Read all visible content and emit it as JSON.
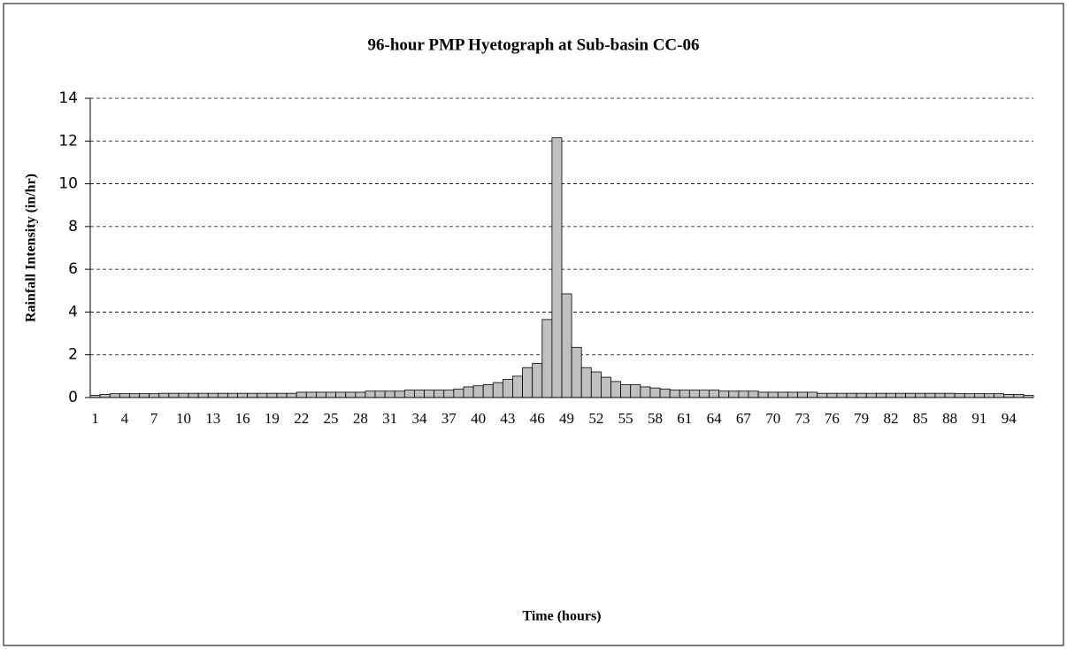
{
  "chart_data": {
    "type": "bar",
    "title": "96-hour PMP Hyetograph at Sub-basin CC-06",
    "xlabel": "Time (hours)",
    "ylabel": "Rainfall Intensity (in/hr)",
    "categories": [
      1,
      null,
      null,
      4,
      null,
      null,
      7,
      null,
      null,
      10,
      null,
      null,
      13,
      null,
      null,
      16,
      null,
      null,
      19,
      null,
      null,
      22,
      null,
      null,
      25,
      null,
      null,
      28,
      null,
      null,
      31,
      null,
      null,
      34,
      null,
      null,
      37,
      null,
      null,
      40,
      null,
      null,
      43,
      null,
      null,
      46,
      null,
      null,
      49,
      null,
      null,
      52,
      null,
      null,
      55,
      null,
      null,
      58,
      null,
      null,
      61,
      null,
      null,
      64,
      null,
      null,
      67,
      null,
      null,
      70,
      null,
      null,
      73,
      null,
      null,
      76,
      null,
      null,
      79,
      null,
      null,
      82,
      null,
      null,
      85,
      null,
      null,
      88,
      null,
      null,
      91,
      null,
      null,
      94,
      null,
      null
    ],
    "values": [
      0.1,
      0.15,
      0.18,
      0.18,
      0.18,
      0.18,
      0.18,
      0.2,
      0.2,
      0.2,
      0.2,
      0.2,
      0.2,
      0.2,
      0.2,
      0.2,
      0.2,
      0.2,
      0.2,
      0.2,
      0.2,
      0.25,
      0.25,
      0.25,
      0.25,
      0.25,
      0.25,
      0.25,
      0.3,
      0.3,
      0.3,
      0.3,
      0.35,
      0.35,
      0.35,
      0.35,
      0.35,
      0.4,
      0.5,
      0.55,
      0.6,
      0.7,
      0.85,
      1.0,
      1.4,
      1.6,
      3.65,
      12.15,
      4.85,
      2.35,
      1.4,
      1.2,
      0.95,
      0.75,
      0.6,
      0.6,
      0.5,
      0.45,
      0.4,
      0.35,
      0.35,
      0.35,
      0.35,
      0.35,
      0.3,
      0.3,
      0.3,
      0.3,
      0.25,
      0.25,
      0.25,
      0.25,
      0.25,
      0.25,
      0.2,
      0.2,
      0.2,
      0.2,
      0.2,
      0.2,
      0.2,
      0.2,
      0.2,
      0.2,
      0.2,
      0.2,
      0.2,
      0.2,
      0.18,
      0.18,
      0.18,
      0.18,
      0.18,
      0.15,
      0.15,
      0.1
    ],
    "color": "#c0c0c0",
    "ylim": [
      0,
      14
    ],
    "yticks": [
      0,
      2,
      4,
      6,
      8,
      10,
      12,
      14
    ],
    "grid": true
  }
}
